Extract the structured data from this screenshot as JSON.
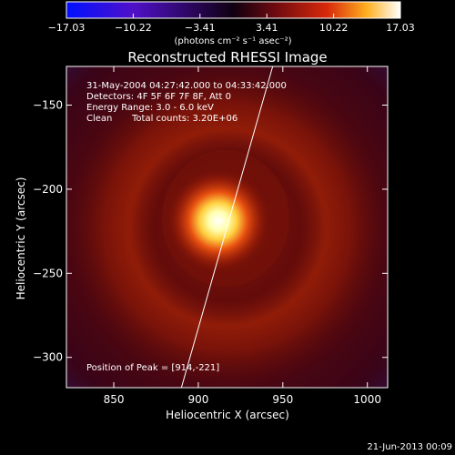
{
  "chart_data": {
    "type": "heatmap",
    "title": "Reconstructed RHESSI Image",
    "xlabel": "Heliocentric X (arcsec)",
    "ylabel": "Heliocentric Y (arcsec)",
    "xlim": [
      822,
      1012
    ],
    "ylim": [
      -318,
      -127
    ],
    "x_ticks": [
      850,
      900,
      950,
      1000
    ],
    "y_ticks": [
      -150,
      -200,
      -250,
      -300
    ],
    "x_tick_labels": [
      "850",
      "900",
      "950",
      "1000"
    ],
    "y_tick_labels": [
      "−150",
      "−200",
      "−250",
      "−300"
    ],
    "colorbar": {
      "ticks": [
        -17.03,
        -10.22,
        -3.41,
        3.41,
        10.22,
        17.03
      ],
      "tick_labels": [
        "−17.03",
        "−10.22",
        "−3.41",
        "3.41",
        "10.22",
        "17.03"
      ],
      "range": [
        -17.03,
        17.03
      ],
      "units_label": "(photons cm⁻² s⁻¹ asec⁻²)"
    },
    "annotations": {
      "line1": "31-May-2004 04:27:42.000 to 04:33:42.000",
      "line2": "Detectors: 4F 5F 6F 7F 8F, Att 0",
      "line3": "Energy Range: 3.0 - 6.0 keV",
      "line4_left": "Clean",
      "line4_right": "Total counts: 3.20E+06",
      "peak": "Position of Peak = [914,-221]"
    },
    "peak_position": [
      914,
      -221
    ],
    "peak_value": 17.03,
    "limb_line": [
      [
        890,
        -318
      ],
      [
        944,
        -127
      ]
    ],
    "color_scheme": {
      "low": "#0000ff",
      "mid": "#000000",
      "high": "#ffffff",
      "background_min": "#000000"
    }
  },
  "footer": {
    "timestamp": "21-Jun-2013 00:09"
  }
}
